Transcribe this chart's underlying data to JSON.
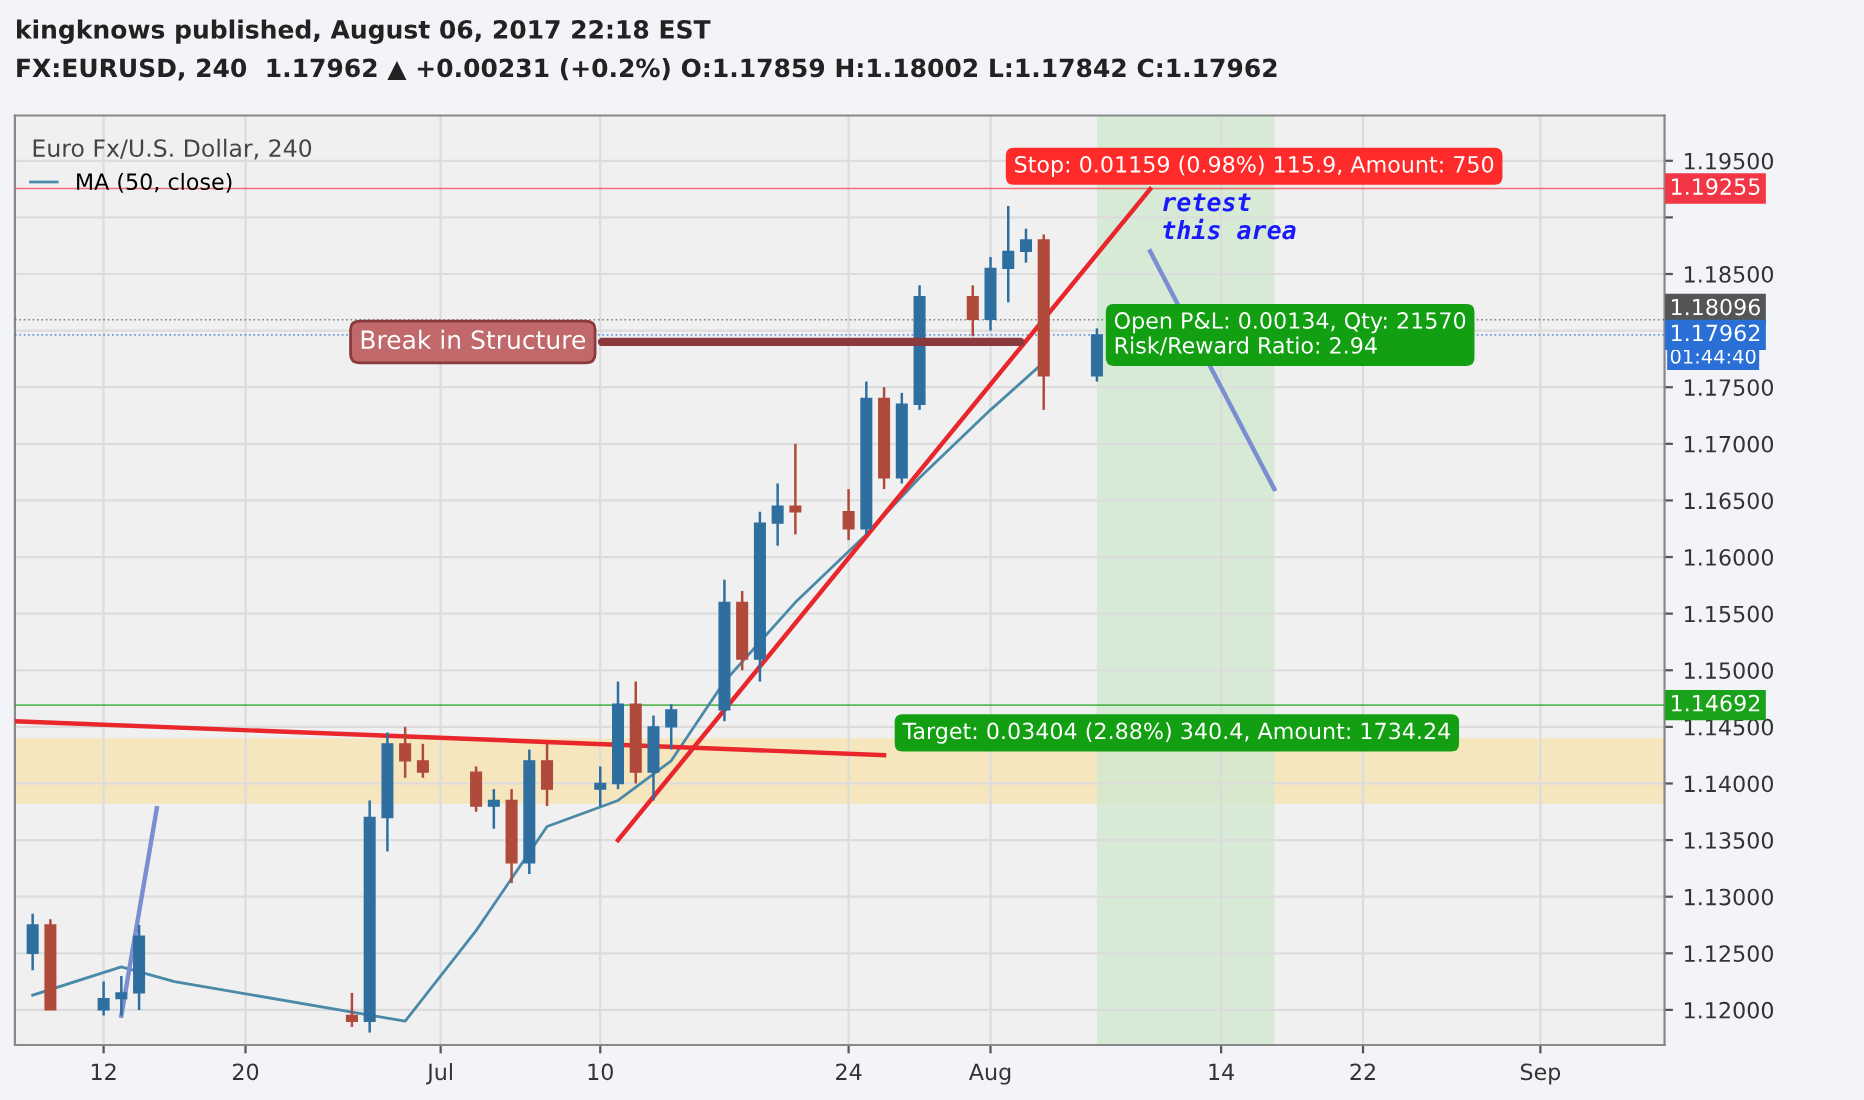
{
  "chart_data": {
    "type": "candlestick",
    "title": "FX:EURUSD, 240  1.17962 ▲ +0.00231 (+0.2%) O:1.17859 H:1.18002 L:1.17842 C:1.17962",
    "subtitle": "Euro Fx/U.S. Dollar, 240",
    "x": [
      "2017-06-08",
      "2017-06-09",
      "2017-06-12",
      "2017-06-13",
      "2017-06-14",
      "2017-06-26",
      "2017-06-27",
      "2017-06-28",
      "2017-06-29",
      "2017-06-30",
      "2017-07-03",
      "2017-07-04",
      "2017-07-05",
      "2017-07-06",
      "2017-07-07",
      "2017-07-10",
      "2017-07-11",
      "2017-07-12",
      "2017-07-13",
      "2017-07-14",
      "2017-07-17",
      "2017-07-18",
      "2017-07-19",
      "2017-07-20",
      "2017-07-21",
      "2017-07-24",
      "2017-07-25",
      "2017-07-26",
      "2017-07-27",
      "2017-07-28",
      "2017-07-31",
      "2017-08-01",
      "2017-08-02",
      "2017-08-03",
      "2017-08-04",
      "2017-08-07"
    ],
    "ohlc": [
      [
        1.125,
        1.1285,
        1.1235,
        1.1275
      ],
      [
        1.1275,
        1.128,
        1.12,
        1.12
      ],
      [
        1.12,
        1.1225,
        1.1195,
        1.121
      ],
      [
        1.121,
        1.123,
        1.1195,
        1.1215
      ],
      [
        1.1215,
        1.1275,
        1.12,
        1.1265
      ],
      [
        1.1195,
        1.1215,
        1.1185,
        1.119
      ],
      [
        1.119,
        1.1385,
        1.118,
        1.137
      ],
      [
        1.137,
        1.1445,
        1.134,
        1.1435
      ],
      [
        1.1435,
        1.145,
        1.1405,
        1.142
      ],
      [
        1.142,
        1.1435,
        1.1405,
        1.141
      ],
      [
        1.141,
        1.1415,
        1.1375,
        1.138
      ],
      [
        1.138,
        1.1395,
        1.136,
        1.1385
      ],
      [
        1.1385,
        1.1395,
        1.1312,
        1.133
      ],
      [
        1.133,
        1.143,
        1.132,
        1.142
      ],
      [
        1.142,
        1.1435,
        1.138,
        1.1395
      ],
      [
        1.1395,
        1.1415,
        1.138,
        1.14
      ],
      [
        1.14,
        1.149,
        1.1395,
        1.147
      ],
      [
        1.147,
        1.149,
        1.14,
        1.141
      ],
      [
        1.141,
        1.146,
        1.1385,
        1.145
      ],
      [
        1.145,
        1.147,
        1.143,
        1.1465
      ],
      [
        1.1465,
        1.158,
        1.1455,
        1.156
      ],
      [
        1.156,
        1.157,
        1.15,
        1.151
      ],
      [
        1.151,
        1.164,
        1.149,
        1.163
      ],
      [
        1.163,
        1.1665,
        1.161,
        1.1645
      ],
      [
        1.1645,
        1.17,
        1.162,
        1.164
      ],
      [
        1.164,
        1.166,
        1.1615,
        1.1625
      ],
      [
        1.1625,
        1.1755,
        1.162,
        1.174
      ],
      [
        1.174,
        1.175,
        1.166,
        1.167
      ],
      [
        1.167,
        1.1745,
        1.1665,
        1.1735
      ],
      [
        1.1735,
        1.184,
        1.173,
        1.183
      ],
      [
        1.183,
        1.184,
        1.1795,
        1.181
      ],
      [
        1.181,
        1.1865,
        1.18,
        1.1855
      ],
      [
        1.1855,
        1.191,
        1.1825,
        1.187
      ],
      [
        1.187,
        1.189,
        1.186,
        1.188
      ],
      [
        1.188,
        1.1885,
        1.173,
        1.176
      ],
      [
        1.176,
        1.1802,
        1.1755,
        1.17962
      ]
    ],
    "colors": [
      "#2f6fa0",
      "#b04a3a",
      "#2f6fa0",
      "#2f6fa0",
      "#2f6fa0",
      "#b04a3a",
      "#2f6fa0",
      "#2f6fa0",
      "#b04a3a",
      "#b04a3a",
      "#b04a3a",
      "#2f6fa0",
      "#b04a3a",
      "#2f6fa0",
      "#b04a3a",
      "#2f6fa0",
      "#2f6fa0",
      "#b04a3a",
      "#2f6fa0",
      "#2f6fa0",
      "#2f6fa0",
      "#b04a3a",
      "#2f6fa0",
      "#2f6fa0",
      "#b04a3a",
      "#b04a3a",
      "#2f6fa0",
      "#b04a3a",
      "#2f6fa0",
      "#2f6fa0",
      "#b04a3a",
      "#2f6fa0",
      "#2f6fa0",
      "#2f6fa0",
      "#b04a3a",
      "#2f6fa0"
    ],
    "series": [
      {
        "type": "line",
        "name": "MA (50, close)",
        "color": "#4a8aa8",
        "x": [
          "2017-06-08",
          "2017-06-13",
          "2017-06-16",
          "2017-06-29",
          "2017-07-03",
          "2017-07-07",
          "2017-07-11",
          "2017-07-14",
          "2017-07-17",
          "2017-07-21",
          "2017-07-25",
          "2017-07-28",
          "2017-08-01",
          "2017-08-04"
        ],
        "values": [
          1.1213,
          1.1238,
          1.1225,
          1.119,
          1.127,
          1.1362,
          1.1385,
          1.142,
          1.149,
          1.156,
          1.162,
          1.167,
          1.173,
          1.1772
        ]
      },
      {
        "type": "line",
        "color": "#e8262b",
        "x": [
          "2017-06-07",
          "2017-07-26"
        ],
        "values": [
          1.1455,
          1.1425
        ]
      },
      {
        "type": "line",
        "color": "#e8262b",
        "x": [
          "2017-07-11",
          "2017-08-10"
        ],
        "values": [
          1.135,
          1.1925
        ]
      },
      {
        "type": "line",
        "color": "#7b8fd0",
        "x": [
          "2017-06-13",
          "2017-06-15"
        ],
        "values": [
          1.1195,
          1.1378
        ]
      },
      {
        "type": "line",
        "color": "#7b8fd0",
        "x": [
          "2017-08-10",
          "2017-08-17"
        ],
        "values": [
          1.187,
          1.166
        ]
      }
    ],
    "ylim": [
      1.1169,
      1.199
    ],
    "yticks": [
      {
        "value": 1.12,
        "label": "1.12000"
      },
      {
        "value": 1.125,
        "label": "1.12500"
      },
      {
        "value": 1.13,
        "label": "1.13000"
      },
      {
        "value": 1.135,
        "label": "1.13500"
      },
      {
        "value": 1.14,
        "label": "1.14000"
      },
      {
        "value": 1.145,
        "label": "1.14500"
      },
      {
        "value": 1.15,
        "label": "1.15000"
      },
      {
        "value": 1.155,
        "label": "1.15500"
      },
      {
        "value": 1.16,
        "label": "1.16000"
      },
      {
        "value": 1.165,
        "label": "1.16500"
      },
      {
        "value": 1.17,
        "label": "1.17000"
      },
      {
        "value": 1.175,
        "label": "1.17500"
      },
      {
        "value": 1.18,
        "label": null
      },
      {
        "value": 1.185,
        "label": "1.18500"
      },
      {
        "value": 1.19,
        "label": null
      },
      {
        "value": 1.195,
        "label": "1.19500"
      }
    ],
    "xlim": [
      "2017-06-07",
      "2017-09-08"
    ],
    "xticks": [
      {
        "value": "2017-06-12",
        "label": "12"
      },
      {
        "value": "2017-06-20",
        "label": "20"
      },
      {
        "value": "2017-07-01",
        "label": "Jul"
      },
      {
        "value": "2017-07-10",
        "label": "10"
      },
      {
        "value": "2017-07-24",
        "label": "24"
      },
      {
        "value": "2017-08-01",
        "label": "Aug"
      },
      {
        "value": "2017-08-14",
        "label": "14"
      },
      {
        "value": "2017-08-22",
        "label": "22"
      },
      {
        "value": "2017-09-01",
        "label": "Sep"
      }
    ],
    "ref_lines": [
      {
        "axis": "y",
        "value": 1.19255,
        "label": "1.19255",
        "color": "#f23645",
        "line_style": "solid"
      },
      {
        "axis": "y",
        "value": 1.18096,
        "label": "1.18096",
        "color": "#555555",
        "line_style": "dotted"
      },
      {
        "axis": "y",
        "value": 1.17962,
        "label": "1.17962",
        "color": "#2a6fd6",
        "line_style": "dotted"
      },
      {
        "axis": "y",
        "value": 1.14692,
        "label": "1.14692",
        "color": "#1aa31a",
        "line_style": "solid"
      }
    ],
    "bands": [
      {
        "axis": "y",
        "from": 1.1382,
        "to": 1.144,
        "color": "#f8e3b0"
      },
      {
        "axis": "x",
        "from": "2017-08-07",
        "to": "2017-08-17",
        "color": "#cfe8cf"
      }
    ],
    "annotations": [
      "kingknows published, August 06, 2017 22:18 EST",
      "01:44:40",
      {
        "text": "Break in Structure",
        "x": "2017-08-03",
        "y": 1.179
      },
      {
        "text": "Stop: 0.01159 (0.98%) 115.9, Amount: 750",
        "x": "2017-08-07",
        "y": 1.19255
      },
      {
        "text": "Open P&L: 0.00134, Qty: 21570\nRisk/Reward Ratio: 2.94",
        "x": "2017-08-07",
        "y": 1.17962
      },
      {
        "text": "Target: 0.03404 (2.88%) 340.4, Amount: 1734.24",
        "x": "2017-08-07",
        "y": 1.14692
      },
      {
        "text": "retest\nthis area",
        "x": "2017-08-10",
        "y": 1.1865
      }
    ],
    "grid": true,
    "legend": "top left"
  }
}
